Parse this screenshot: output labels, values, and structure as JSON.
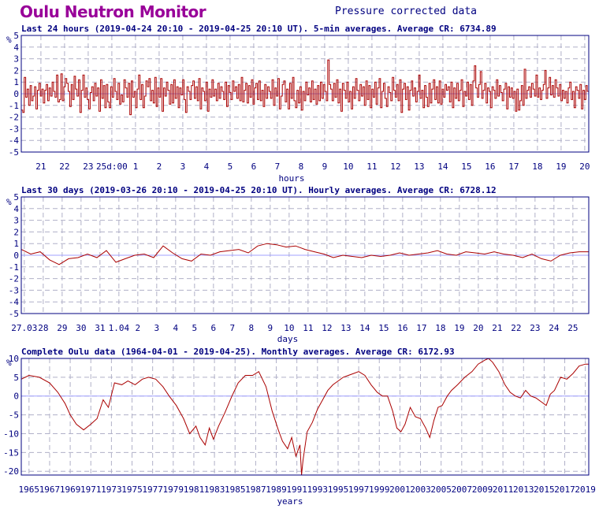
{
  "header": {
    "title": "Oulu Neutron Monitor",
    "subtitle": "Pressure corrected data"
  },
  "colors": {
    "title": "#990099",
    "text": "#000080",
    "frame": "#000080",
    "grid": "#b0b0c8",
    "series": "#aa0000",
    "zero_line": "#a0a0ff"
  },
  "chart_data": [
    {
      "type": "line",
      "title": "Last 24 hours (2019-04-24 20:10 - 2019-04-25 20:10 UT). 5-min averages. Average CR: 6734.89",
      "xlabel": "hours",
      "ylabel": "%",
      "ylim": [
        -5,
        5
      ],
      "yticks": [
        -5,
        -4,
        -3,
        -2,
        -1,
        0,
        1,
        2,
        3,
        4,
        5
      ],
      "xlim": [
        20.17,
        44.17
      ],
      "xtick_positions": [
        21,
        22,
        23,
        24,
        25,
        26,
        27,
        28,
        29,
        30,
        31,
        32,
        33,
        34,
        35,
        36,
        37,
        38,
        39,
        40,
        41,
        42,
        43,
        44
      ],
      "xtick_labels": [
        "21",
        "22",
        "23",
        "25d:00",
        "1",
        "2",
        "3",
        "4",
        "5",
        "6",
        "7",
        "8",
        "9",
        "10",
        "11",
        "12",
        "13",
        "14",
        "15",
        "16",
        "17",
        "18",
        "19",
        "20"
      ],
      "grid": true,
      "step": true,
      "series": [
        {
          "values": [
            -1.4,
            -1.6,
            1.4,
            -0.3,
            0.4,
            -1.0,
            0.7,
            -0.6,
            -0.2,
            0.6,
            -1.3,
            0.3,
            0.9,
            -0.2,
            0.4,
            -0.8,
            0.3,
            0.8,
            -0.6,
            0.5,
            -0.2,
            1.0,
            0.2,
            -0.3,
            1.6,
            -0.7,
            -0.5,
            1.7,
            -0.6,
            0.6,
            1.3,
            0.9,
            0.2,
            -1.1,
            0.8,
            -0.5,
            1.5,
            0.4,
            -0.2,
            1.2,
            -1.6,
            0.3,
            1.6,
            -0.3,
            0.5,
            -0.5,
            -1.3,
            0.1,
            0.6,
            -0.6,
            0.9,
            -0.2,
            0.5,
            -1.5,
            1.2,
            -0.4,
            0.7,
            -1.2,
            0.8,
            -0.7,
            -1.2,
            0.6,
            -0.3,
            1.3,
            0.2,
            -0.5,
            0.9,
            -0.9,
            -0.1,
            -0.7,
            1.2,
            0.5,
            -0.3,
            0.9,
            -1.8,
            1.1,
            -0.3,
            0.2,
            -1.2,
            0.4,
            1.6,
            -0.5,
            0.8,
            -1.2,
            -0.2,
            1.1,
            0.6,
            1.3,
            -0.6,
            0.3,
            -0.8,
            1.4,
            -1.1,
            0.5,
            -0.3,
            1.3,
            -1.5,
            0.5,
            -0.2,
            1.0,
            0.3,
            -0.9,
            0.8,
            -0.8,
            1.2,
            -0.4,
            0.6,
            -1.2,
            0.5,
            -0.1,
            1.2,
            -0.5,
            -1.6,
            0.6,
            0.2,
            -0.5,
            0.7,
            1.1,
            -0.4,
            0.6,
            -0.6,
            1.3,
            -1.3,
            0.5,
            0.2,
            -0.6,
            1.0,
            -1.5,
            0.4,
            -0.3,
            1.2,
            -0.2,
            0.4,
            -0.6,
            0.9,
            -0.4,
            0.6,
            0.2,
            -0.5,
            1.0,
            -1.1,
            0.7,
            0.1,
            -0.5,
            1.1,
            0.2,
            0.6,
            -0.4,
            0.8,
            -0.6,
            1.4,
            -0.7,
            0.3,
            0.9,
            -0.8,
            0.7,
            -0.3,
            1.2,
            -0.9,
            0.5,
            0.9,
            -0.5,
            1.1,
            -0.6,
            0.3,
            -1.1,
            0.8,
            -0.4,
            0.6,
            0.2,
            -0.4,
            1.2,
            -1.0,
            0.5,
            -0.2,
            1.3,
            -1.3,
            -0.2,
            0.8,
            1.1,
            -0.7,
            0.4,
            -1.3,
            0.9,
            -0.4,
            1.4,
            -0.6,
            -1.2,
            0.3,
            -0.8,
            0.6,
            -1.4,
            0.2,
            -0.6,
            1.0,
            -0.1,
            0.5,
            -0.7,
            1.1,
            -0.5,
            0.4,
            -0.9,
            0.7,
            -0.6,
            1.0,
            -0.4,
            0.8,
            0.2,
            -0.6,
            2.9,
            0.8,
            0.4,
            -0.6,
            0.9,
            -0.3,
            1.2,
            -0.8,
            0.4,
            -1.5,
            0.9,
            0.3,
            -0.4,
            1.0,
            -0.7,
            0.2,
            -1.3,
            0.6,
            -0.4,
            1.3,
            0.3,
            -0.6,
            0.8,
            -0.2,
            0.6,
            -1.0,
            1.1,
            -0.5,
            0.7,
            -1.2,
            0.4,
            -0.3,
            1.0,
            -0.9,
            0.5,
            1.3,
            -1.2,
            0.2,
            0.9,
            -0.4,
            -1.1,
            0.6,
            0.1,
            -0.6,
            1.4,
            0.3,
            -0.3,
            0.8,
            -0.6,
            1.2,
            -1.6,
            0.4,
            0.9,
            -0.5,
            0.6,
            -1.4,
            0.3,
            1.1,
            -0.2,
            0.5,
            -0.7,
            0.2,
            1.6,
            -0.4,
            0.3,
            -1.2,
            0.7,
            -0.3,
            -1.1,
            0.9,
            -0.8,
            0.4,
            1.2,
            -0.5,
            0.6,
            -0.8,
            1.1,
            -0.9,
            0.4,
            -0.3,
            0.8,
            0.3,
            0.6,
            -0.7,
            1.0,
            -1.2,
            0.5,
            -0.4,
            0.9,
            -0.6,
            0.3,
            1.2,
            -1.1,
            0.2,
            -0.2,
            1.0,
            -0.5,
            0.8,
            -1.0,
            1.1,
            2.4,
            0.5,
            -0.3,
            0.8,
            1.9,
            -0.4,
            0.3,
            0.9,
            -0.8,
            0.5,
            0.2,
            -1.2,
            0.6,
            0.3,
            -0.4,
            1.2,
            -0.2,
            0.7,
            0.1,
            -0.6,
            0.4,
            0.9,
            -1.3,
            0.6,
            -0.3,
            0.5,
            -0.4,
            0.2,
            -1.5,
            0.4,
            -1.4,
            -0.6,
            0.7,
            -1.0,
            2.1,
            -0.4,
            0.3,
            0.6,
            -0.3,
            0.9,
            0.4,
            -0.2,
            1.6,
            -0.3,
            0.5,
            -0.5,
            0.3,
            0.8,
            2.0,
            -0.4,
            0.5,
            1.4,
            -0.1,
            0.7,
            -0.3,
            1.2,
            0.5,
            -0.2,
            0.8,
            -0.6,
            0.3,
            -0.4,
            0.2,
            -0.8,
            0.5,
            1.0,
            -0.5,
            0.2,
            -1.2,
            0.6,
            0.3,
            -0.4,
            0.8,
            -1.3,
            0.3,
            -0.5,
            0.7,
            0.2
          ]
        }
      ]
    },
    {
      "type": "line",
      "title": "Last 30 days (2019-03-26 20:10 - 2019-04-25 20:10 UT). Hourly averages. Average CR: 6728.12",
      "xlabel": "days",
      "ylabel": "%",
      "ylim": [
        -5,
        5
      ],
      "yticks": [
        -5,
        -4,
        -3,
        -2,
        -1,
        0,
        1,
        2,
        3,
        4,
        5
      ],
      "xlim": [
        0,
        30
      ],
      "xtick_positions": [
        0.16,
        1.16,
        2.16,
        3.16,
        4.16,
        5.16,
        6.16,
        7.16,
        8.16,
        9.16,
        10.16,
        11.16,
        12.16,
        13.16,
        14.16,
        15.16,
        16.16,
        17.16,
        18.16,
        19.16,
        20.16,
        21.16,
        22.16,
        23.16,
        24.16,
        25.16,
        26.16,
        27.16,
        28.16,
        29.16
      ],
      "xtick_labels": [
        "27.03",
        "28",
        "29",
        "30",
        "31",
        "1.04",
        "2",
        "3",
        "4",
        "5",
        "6",
        "7",
        "8",
        "9",
        "10",
        "11",
        "12",
        "13",
        "14",
        "15",
        "16",
        "17",
        "18",
        "19",
        "20",
        "21",
        "22",
        "23",
        "24",
        "25"
      ],
      "grid": true,
      "series": [
        {
          "x": [
            0,
            0.5,
            1,
            1.5,
            2,
            2.5,
            3,
            3.5,
            4,
            4.5,
            5,
            5.5,
            6,
            6.5,
            7,
            7.5,
            8,
            8.5,
            9,
            9.5,
            10,
            10.5,
            11,
            11.5,
            12,
            12.5,
            13,
            13.5,
            14,
            14.5,
            15,
            15.5,
            16,
            16.5,
            17,
            17.5,
            18,
            18.5,
            19,
            19.5,
            20,
            20.5,
            21,
            21.5,
            22,
            22.5,
            23,
            23.5,
            24,
            24.5,
            25,
            25.5,
            26,
            26.5,
            27,
            27.5,
            28,
            28.5,
            29,
            29.5,
            30
          ],
          "values": [
            0.5,
            0.1,
            0.3,
            -0.4,
            -0.8,
            -0.3,
            -0.2,
            0.1,
            -0.2,
            0.4,
            -0.6,
            -0.3,
            0.0,
            0.1,
            -0.2,
            0.8,
            0.2,
            -0.3,
            -0.5,
            0.1,
            0.0,
            0.3,
            0.4,
            0.5,
            0.2,
            0.8,
            1.0,
            0.9,
            0.7,
            0.8,
            0.5,
            0.3,
            0.1,
            -0.2,
            0.0,
            -0.1,
            -0.2,
            0.0,
            -0.1,
            0.0,
            0.2,
            0.0,
            0.1,
            0.2,
            0.4,
            0.1,
            0.0,
            0.3,
            0.2,
            0.1,
            0.3,
            0.1,
            0.0,
            -0.2,
            0.1,
            -0.3,
            -0.5,
            0.0,
            0.2,
            0.3,
            0.3
          ]
        }
      ]
    },
    {
      "type": "line",
      "title": "Complete Oulu data (1964-04-01 - 2019-04-25). Monthly averages. Average CR: 6172.93",
      "xlabel": "years",
      "ylabel": "%",
      "ylim": [
        -21,
        10
      ],
      "yticks": [
        -20,
        -15,
        -10,
        -5,
        0,
        5,
        10
      ],
      "xlim": [
        1964.25,
        2019.33
      ],
      "xtick_positions": [
        1965,
        1967,
        1969,
        1971,
        1973,
        1975,
        1977,
        1979,
        1981,
        1983,
        1985,
        1987,
        1989,
        1991,
        1993,
        1995,
        1997,
        1999,
        2001,
        2003,
        2005,
        2007,
        2009,
        2011,
        2013,
        2015,
        2017,
        2019
      ],
      "xtick_labels": [
        "1965",
        "1967",
        "1969",
        "1971",
        "1973",
        "1975",
        "1977",
        "1979",
        "1981",
        "1983",
        "1985",
        "1987",
        "1989",
        "1991",
        "1993",
        "1995",
        "1997",
        "1999",
        "2001",
        "2003",
        "2005",
        "2007",
        "2009",
        "2011",
        "2013",
        "2015",
        "2017",
        "2019"
      ],
      "grid": true,
      "series": [
        {
          "x": [
            1964.25,
            1965,
            1966,
            1967,
            1967.8,
            1968.5,
            1969,
            1969.6,
            1970.3,
            1971,
            1971.6,
            1972.2,
            1972.7,
            1973.3,
            1974,
            1974.6,
            1975.3,
            1976,
            1976.6,
            1977.3,
            1978,
            1978.6,
            1979.3,
            1980,
            1980.6,
            1981.2,
            1981.6,
            1982.1,
            1982.5,
            1982.9,
            1983.4,
            1984,
            1984.7,
            1985.3,
            1986,
            1986.7,
            1987.3,
            1988,
            1988.6,
            1989.2,
            1989.6,
            1990.1,
            1990.5,
            1990.9,
            1991.3,
            1991.45,
            1991.6,
            1992,
            1992.5,
            1993,
            1993.5,
            1994,
            1994.5,
            1995,
            1995.5,
            1996,
            1996.5,
            1997,
            1997.6,
            1998.2,
            1998.8,
            1999.3,
            1999.8,
            2000.3,
            2000.7,
            2001.1,
            2001.5,
            2002,
            2002.5,
            2003,
            2003.5,
            2003.9,
            2004.3,
            2004.7,
            2005.1,
            2005.6,
            2006,
            2006.6,
            2007.3,
            2008,
            2008.6,
            2009.2,
            2009.6,
            2010,
            2010.6,
            2011.2,
            2011.7,
            2012.2,
            2012.7,
            2013.2,
            2013.7,
            2014.2,
            2014.7,
            2015.2,
            2015.6,
            2016,
            2016.6,
            2017.2,
            2017.8,
            2018.4,
            2019,
            2019.33
          ],
          "values": [
            4.5,
            5.5,
            5.0,
            3.5,
            1.0,
            -2.0,
            -5.0,
            -7.5,
            -9.0,
            -7.5,
            -6.0,
            -1.0,
            -3.0,
            3.5,
            3.0,
            4.0,
            3.0,
            4.5,
            5.0,
            4.5,
            2.5,
            0.0,
            -2.5,
            -6.0,
            -10.0,
            -8.0,
            -11.0,
            -13.0,
            -8.5,
            -11.5,
            -8.0,
            -4.5,
            0.0,
            3.5,
            5.5,
            5.5,
            6.5,
            2.5,
            -4.0,
            -9.0,
            -12.0,
            -14.0,
            -11.0,
            -16.0,
            -13.0,
            -21.0,
            -17.0,
            -9.5,
            -7.0,
            -3.5,
            -1.0,
            1.5,
            3.0,
            4.0,
            5.0,
            5.5,
            6.0,
            6.5,
            5.5,
            3.0,
            1.0,
            0.0,
            0.0,
            -4.0,
            -8.5,
            -9.5,
            -7.5,
            -3.0,
            -5.5,
            -6.0,
            -8.5,
            -11.0,
            -6.5,
            -3.0,
            -2.5,
            0.0,
            1.5,
            3.0,
            5.0,
            6.5,
            8.5,
            9.5,
            10.0,
            9.0,
            6.5,
            3.0,
            1.0,
            0.0,
            -0.5,
            1.5,
            0.0,
            -0.5,
            -1.5,
            -2.5,
            0.5,
            1.5,
            5.0,
            4.5,
            6.0,
            8.0,
            8.5,
            8.5
          ]
        }
      ]
    }
  ]
}
